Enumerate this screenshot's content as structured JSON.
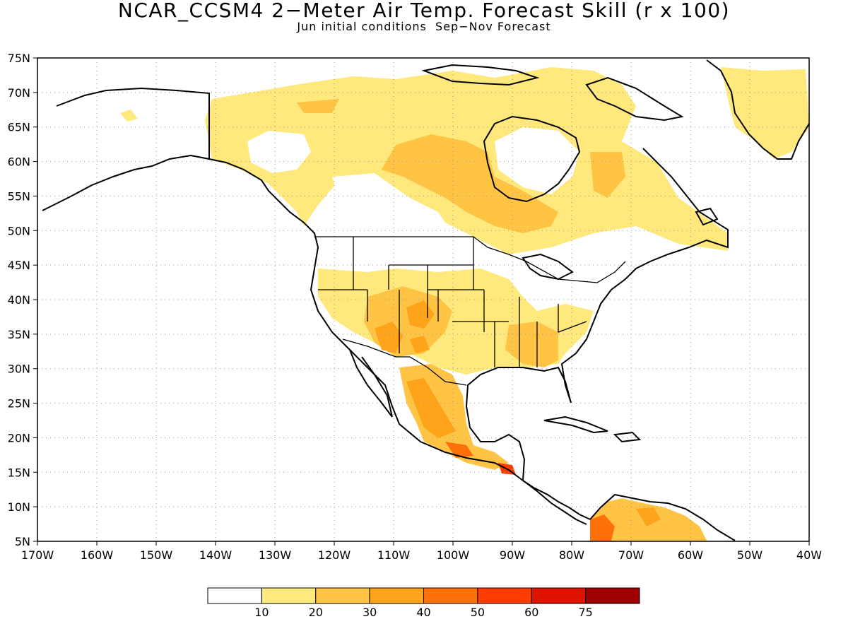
{
  "title": "NCAR_CCSM4 2−Meter Air Temp. Forecast Skill (r x 100)",
  "subtitle": "Jun initial conditions  Sep−Nov Forecast",
  "map": {
    "projection": "cylindrical equidistant",
    "lon_range": [
      -170,
      -40
    ],
    "lat_range": [
      5,
      75
    ],
    "grid": "dotted",
    "lon_ticks": [
      "170W",
      "160W",
      "150W",
      "140W",
      "130W",
      "120W",
      "110W",
      "100W",
      "90W",
      "80W",
      "70W",
      "60W",
      "50W",
      "40W"
    ],
    "lat_ticks": [
      "75N",
      "70N",
      "65N",
      "60N",
      "55N",
      "50N",
      "45N",
      "40N",
      "35N",
      "30N",
      "25N",
      "20N",
      "15N",
      "10N",
      "5N"
    ]
  },
  "colorbar": {
    "colors": [
      "#ffffff",
      "#ffe87c",
      "#ffc444",
      "#ffa31a",
      "#ff7008",
      "#ff3c00",
      "#df1400",
      "#a00000"
    ],
    "labels": [
      "10",
      "20",
      "30",
      "40",
      "50",
      "60",
      "75"
    ]
  }
}
